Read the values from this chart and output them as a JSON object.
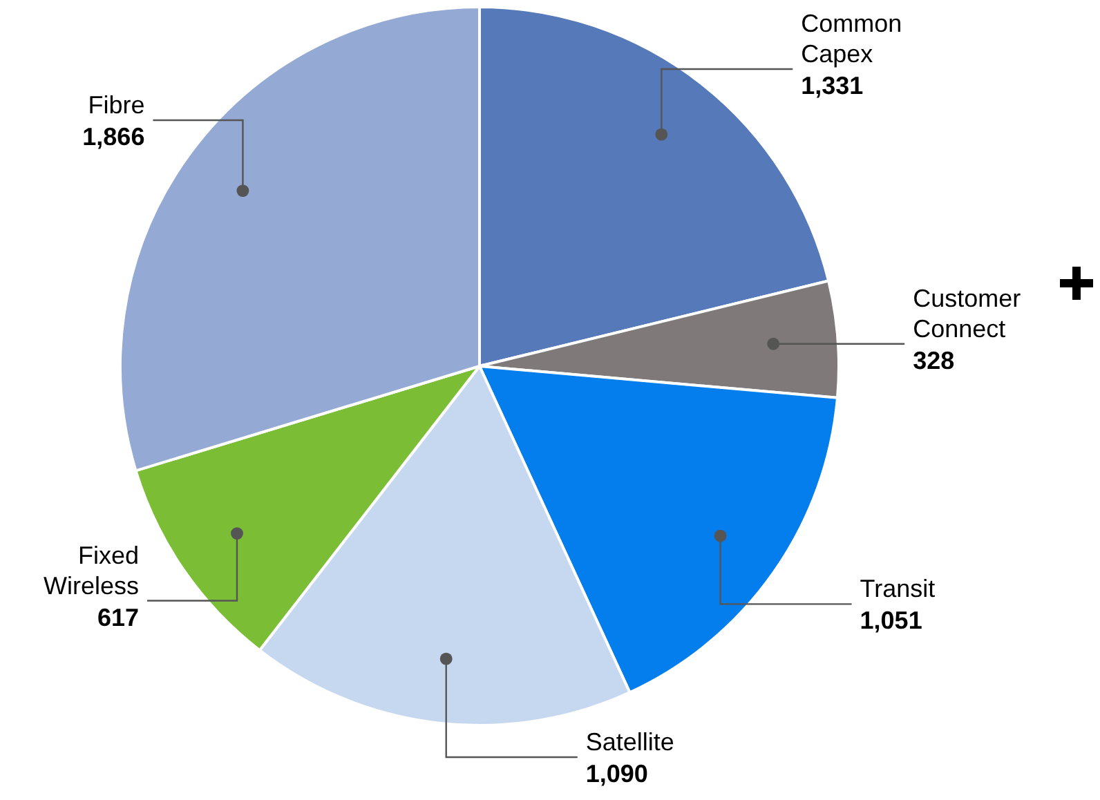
{
  "chart_data": {
    "type": "pie",
    "categories": [
      "Common Capex",
      "Customer Connect",
      "Transit",
      "Satellite",
      "Fixed Wireless",
      "Fibre"
    ],
    "values": [
      1331,
      328,
      1051,
      1090,
      617,
      1866
    ],
    "colors": [
      "#5579b9",
      "#7f7a79",
      "#047ded",
      "#c6d8f0",
      "#7bbd34",
      "#94a9d3"
    ],
    "value_labels": [
      "1,331",
      "328",
      "1,051",
      "1,090",
      "617",
      "1,866"
    ]
  }
}
